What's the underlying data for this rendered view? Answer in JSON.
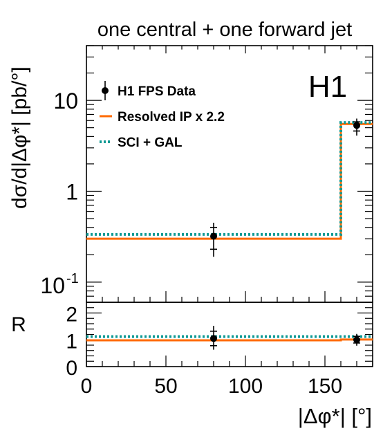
{
  "chart_data": {
    "type": "line",
    "title": "one central + one forward jet",
    "experiment_label": "H1",
    "xlabel": "|Δφ*| [°]",
    "ylabel": "dσ/d|Δφ*| [pb/°]",
    "ratio_label": "R",
    "xlim": [
      0,
      180
    ],
    "ylim": [
      0.06,
      40
    ],
    "yscale": "log",
    "ratio_ylim": [
      0,
      2.4
    ],
    "x_ticks": [
      0,
      50,
      100,
      150
    ],
    "y_ticks": [
      {
        "value": 10,
        "label": "10"
      },
      {
        "value": 1,
        "label": "1"
      },
      {
        "value": 0.1,
        "label": "10",
        "sup": "-1"
      }
    ],
    "ratio_ticks": [
      0,
      1,
      2
    ],
    "bins": [
      [
        0,
        160
      ],
      [
        160,
        180
      ]
    ],
    "legend_position": "top-left",
    "data": {
      "name": "H1 FPS Data",
      "color": "#000000",
      "points": [
        {
          "x": 80,
          "y": 0.32,
          "y_low_inner": 0.23,
          "y_high_inner": 0.4,
          "y_low": 0.19,
          "y_high": 0.45
        },
        {
          "x": 170,
          "y": 5.3,
          "y_low_inner": 4.6,
          "y_high_inner": 5.8,
          "y_low": 4.1,
          "y_high": 6.3
        }
      ],
      "ratio_points": [
        {
          "x": 80,
          "y": 1.05,
          "y_low_inner": 0.78,
          "y_high_inner": 1.32,
          "y_low": 0.63,
          "y_high": 1.52
        },
        {
          "x": 170,
          "y": 1.0,
          "y_low_inner": 0.88,
          "y_high_inner": 1.13,
          "y_low": 0.78,
          "y_high": 1.22
        }
      ]
    },
    "series": [
      {
        "name": "Resolved IP x 2.2",
        "color": "#ff6a00",
        "style": "solid",
        "values": [
          0.3,
          5.5
        ],
        "ratio_values": [
          0.98,
          1.01
        ]
      },
      {
        "name": "SCI + GAL",
        "color": "#0f9a94",
        "style": "dotted",
        "values": [
          0.335,
          5.7
        ],
        "ratio_values": [
          1.12,
          1.12
        ]
      }
    ]
  }
}
